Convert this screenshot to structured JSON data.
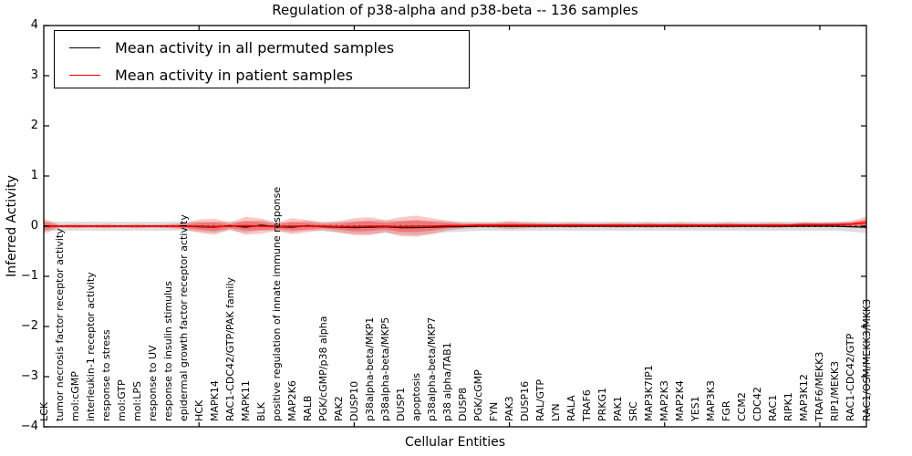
{
  "title": "Regulation of p38-alpha and p38-beta -- 136 samples",
  "axes": {
    "xlabel": "Cellular Entities",
    "ylabel": "Inferred Activity",
    "ytick_labels": [
      "4",
      "3",
      "2",
      "1",
      "0",
      "−1",
      "−2",
      "−3",
      "−4"
    ],
    "ytick_values": [
      4,
      3,
      2,
      1,
      0,
      -1,
      -2,
      -3,
      -4
    ]
  },
  "legend": {
    "items": [
      {
        "label": "Mean activity in all permuted samples",
        "color": "#000000"
      },
      {
        "label": "Mean activity in patient samples",
        "color": "#ff0000"
      }
    ]
  },
  "colors": {
    "patient_line": "#ff0000",
    "permuted_line": "#000000",
    "patient_band_fill": "#ff0000",
    "permuted_band_fill": "#000000",
    "spine": "#000000"
  },
  "chart_data": {
    "type": "line",
    "title": "Regulation of p38-alpha and p38-beta -- 136 samples",
    "xlabel": "Cellular Entities",
    "ylabel": "Inferred Activity",
    "ylim": [
      -4,
      4
    ],
    "xticks_major_indices": [
      10,
      20,
      30,
      40,
      50
    ],
    "grid": false,
    "legend_position": "upper left",
    "categories": [
      "LCK",
      "tumor necrosis factor receptor activity",
      "mol:cGMP",
      "interleukin-1 receptor activity",
      "response to stress",
      "mol:GTP",
      "mol:LPS",
      "response to UV",
      "response to insulin stimulus",
      "epidermal growth factor receptor activity",
      "HCK",
      "MAPK14",
      "RAC1-CDC42/GTP/PAK family",
      "MAPK11",
      "BLK",
      "positive regulation of innate immune response",
      "MAP2K6",
      "RALB",
      "PGK/cGMP/p38 alpha",
      "PAK2",
      "DUSP10",
      "p38alpha-beta/MKP1",
      "p38alpha-beta/MKP5",
      "DUSP1",
      "apoptosis",
      "p38alpha-beta/MKP7",
      "p38 alpha/TAB1",
      "DUSP8",
      "PGK/cGMP",
      "FYN",
      "PAK3",
      "DUSP16",
      "RAL/GTP",
      "LYN",
      "RALA",
      "TRAF6",
      "PRKG1",
      "PAK1",
      "SRC",
      "MAP3K7IP1",
      "MAP2K3",
      "MAP2K4",
      "YES1",
      "MAP3K3",
      "FGR",
      "CCM2",
      "CDC42",
      "RAC1",
      "RIPK1",
      "MAP3K12",
      "TRAF6/MEKK3",
      "RIP1/MEKK3",
      "RAC1-CDC42/GTP",
      "RAC1/OSM/MEKK3/MKK3"
    ],
    "series": [
      {
        "name": "Mean activity in all permuted samples",
        "color": "#000000",
        "values": [
          0,
          0,
          0,
          0,
          0,
          0,
          0,
          0,
          0,
          0,
          -0.01,
          -0.02,
          0.01,
          -0.02,
          0.02,
          -0.01,
          -0.02,
          0.01,
          -0.01,
          -0.02,
          -0.03,
          -0.02,
          -0.01,
          -0.03,
          -0.03,
          -0.02,
          -0.01,
          -0.01,
          0,
          0,
          0,
          0,
          0,
          0,
          0,
          0,
          0,
          0,
          0,
          0,
          0,
          0,
          0,
          0,
          0,
          0,
          0,
          0,
          0,
          0,
          0,
          0,
          -0.01,
          -0.02
        ],
        "band_halfwidth": [
          0.1,
          0.09,
          0.09,
          0.09,
          0.09,
          0.09,
          0.09,
          0.09,
          0.09,
          0.09,
          0.1,
          0.11,
          0.09,
          0.11,
          0.1,
          0.09,
          0.1,
          0.1,
          0.09,
          0.11,
          0.13,
          0.14,
          0.12,
          0.14,
          0.15,
          0.13,
          0.11,
          0.1,
          0.09,
          0.09,
          0.09,
          0.09,
          0.09,
          0.09,
          0.09,
          0.09,
          0.09,
          0.09,
          0.09,
          0.09,
          0.09,
          0.09,
          0.09,
          0.09,
          0.09,
          0.09,
          0.09,
          0.09,
          0.09,
          0.09,
          0.09,
          0.09,
          0.1,
          0.12
        ]
      },
      {
        "name": "Mean activity in patient samples",
        "color": "#ff0000",
        "values": [
          0,
          0,
          0,
          0,
          0,
          0,
          0,
          0,
          0,
          0,
          0,
          -0.01,
          0,
          0.01,
          0,
          -0.01,
          0,
          0,
          0,
          -0.01,
          -0.01,
          0,
          0,
          -0.01,
          0,
          0,
          0.01,
          0.01,
          0.02,
          0.02,
          0.02,
          0.02,
          0.02,
          0.02,
          0.02,
          0.02,
          0.02,
          0.02,
          0.02,
          0.02,
          0.02,
          0.02,
          0.02,
          0.02,
          0.02,
          0.02,
          0.02,
          0.02,
          0.02,
          0.03,
          0.03,
          0.03,
          0.04,
          0.07
        ],
        "band_halfwidth": [
          0.15,
          0.03,
          0.04,
          0.03,
          0.04,
          0.03,
          0.04,
          0.03,
          0.04,
          0.06,
          0.13,
          0.16,
          0.07,
          0.18,
          0.15,
          0.08,
          0.16,
          0.12,
          0.08,
          0.11,
          0.17,
          0.18,
          0.12,
          0.19,
          0.21,
          0.16,
          0.1,
          0.06,
          0.05,
          0.05,
          0.08,
          0.06,
          0.05,
          0.04,
          0.05,
          0.04,
          0.04,
          0.05,
          0.04,
          0.05,
          0.04,
          0.05,
          0.04,
          0.04,
          0.05,
          0.04,
          0.04,
          0.05,
          0.04,
          0.05,
          0.04,
          0.05,
          0.06,
          0.12
        ]
      }
    ],
    "zero_reference_line": {
      "value": 0,
      "style": "dotted",
      "color": "#000000"
    }
  }
}
